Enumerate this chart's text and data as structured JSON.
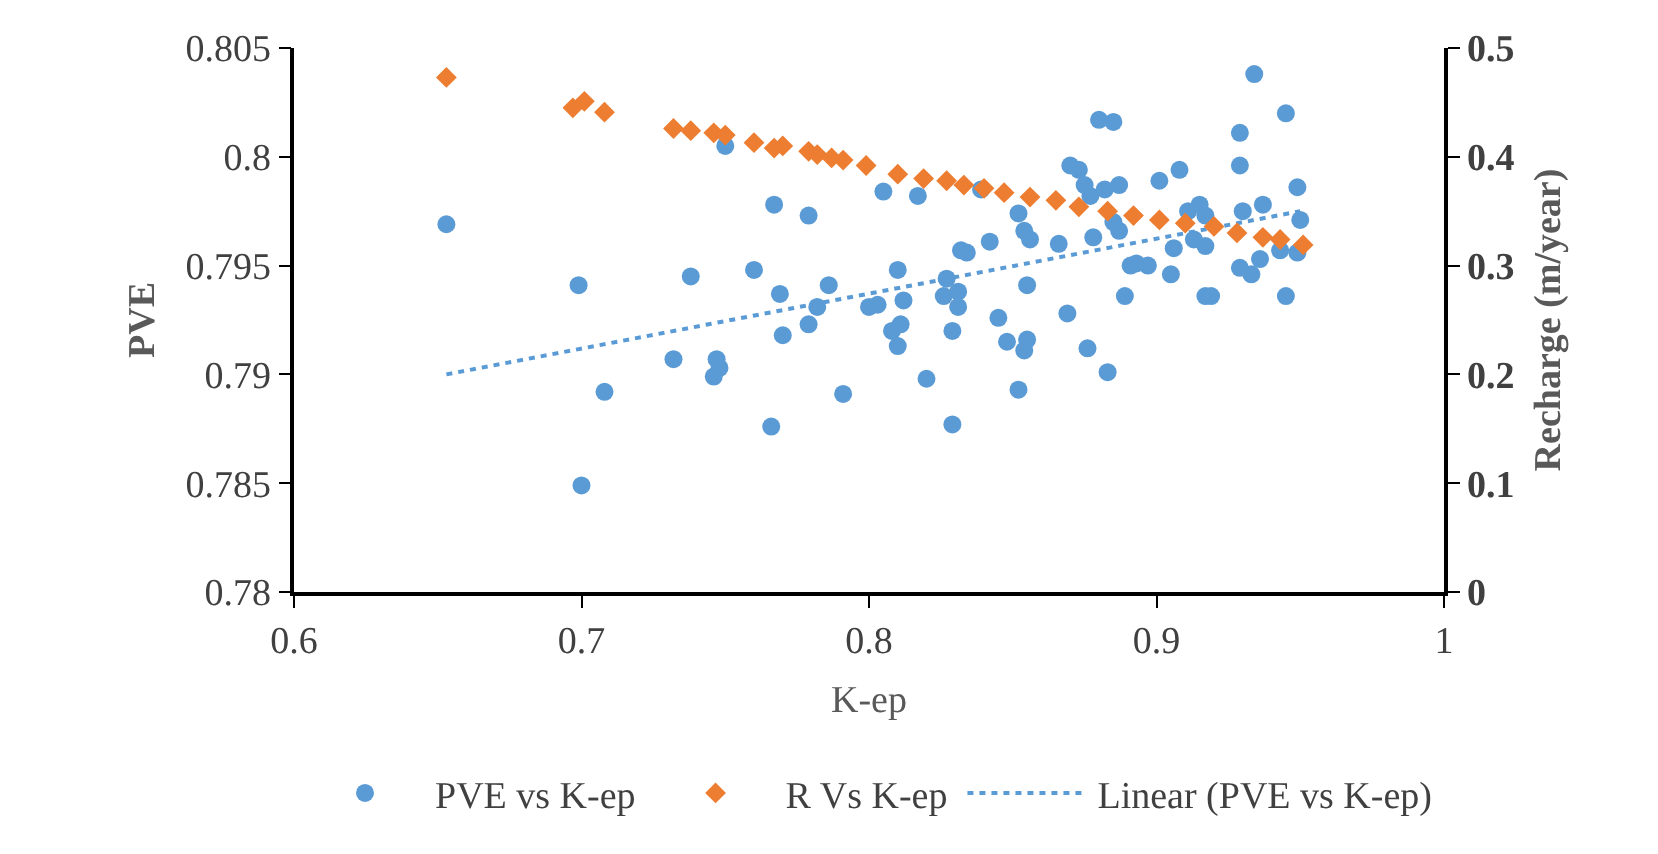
{
  "chart_data": {
    "type": "scatter",
    "xlabel": "K-ep",
    "ylabel": "PVE",
    "y2label": "Recharge (m/year)",
    "xlim": [
      0.6,
      1
    ],
    "xticks": [
      0.6,
      0.7,
      0.8,
      0.9,
      1
    ],
    "ylim": [
      0.78,
      0.805
    ],
    "yticks": [
      0.78,
      0.785,
      0.79,
      0.795,
      0.8,
      0.805
    ],
    "y2lim": [
      0,
      0.5
    ],
    "y2ticks": [
      0,
      0.1,
      0.2,
      0.3,
      0.4,
      0.5
    ],
    "grid": false,
    "legend": "bottom",
    "series": [
      {
        "name": "PVE vs K-ep",
        "color": "#5b9bd5",
        "marker": "circle",
        "x": [
          0.653,
          0.699,
          0.7,
          0.708,
          0.732,
          0.738,
          0.747,
          0.748,
          0.746,
          0.75,
          0.76,
          0.767,
          0.766,
          0.769,
          0.77,
          0.779,
          0.779,
          0.782,
          0.786,
          0.791,
          0.8,
          0.803,
          0.805,
          0.81,
          0.808,
          0.811,
          0.81,
          0.812,
          0.817,
          0.82,
          0.826,
          0.827,
          0.829,
          0.829,
          0.831,
          0.831,
          0.832,
          0.834,
          0.839,
          0.842,
          0.845,
          0.848,
          0.852,
          0.852,
          0.854,
          0.856,
          0.855,
          0.855,
          0.854,
          0.866,
          0.869,
          0.87,
          0.873,
          0.875,
          0.876,
          0.878,
          0.877,
          0.882,
          0.887,
          0.88,
          0.885,
          0.883,
          0.885,
          0.887,
          0.889,
          0.891,
          0.893,
          0.897,
          0.901,
          0.905,
          0.906,
          0.908,
          0.911,
          0.915,
          0.917,
          0.913,
          0.917,
          0.917,
          0.919,
          0.929,
          0.929,
          0.93,
          0.929,
          0.933,
          0.934,
          0.936,
          0.937,
          0.945,
          0.945,
          0.943,
          0.949,
          0.949,
          0.95
        ],
        "values": [
          0.7969,
          0.7941,
          0.7849,
          0.7892,
          0.7907,
          0.7945,
          0.7907,
          0.7903,
          0.7899,
          0.8005,
          0.7948,
          0.7978,
          0.7876,
          0.7937,
          0.7918,
          0.7973,
          0.7923,
          0.7931,
          0.7941,
          0.7891,
          0.7931,
          0.7932,
          0.7984,
          0.7948,
          0.792,
          0.7923,
          0.7913,
          0.7934,
          0.7982,
          0.7898,
          0.7936,
          0.7944,
          0.792,
          0.7877,
          0.7938,
          0.7931,
          0.7957,
          0.7956,
          0.7985,
          0.7961,
          0.7926,
          0.7915,
          0.7893,
          0.7974,
          0.7966,
          0.7962,
          0.7941,
          0.7916,
          0.7911,
          0.796,
          0.7928,
          0.7996,
          0.7994,
          0.7987,
          0.7912,
          0.7963,
          0.7982,
          0.7985,
          0.7987,
          0.8017,
          0.8016,
          0.7901,
          0.797,
          0.7966,
          0.7936,
          0.795,
          0.7951,
          0.795,
          0.7989,
          0.7946,
          0.7958,
          0.7994,
          0.7975,
          0.7978,
          0.7973,
          0.7962,
          0.7959,
          0.7936,
          0.7936,
          0.8011,
          0.7996,
          0.7975,
          0.7949,
          0.7946,
          0.8038,
          0.7953,
          0.7978,
          0.802,
          0.7936,
          0.7957,
          0.7956,
          0.7986,
          0.7971
        ]
      },
      {
        "name": "R Vs K-ep",
        "color": "#ed7d31",
        "marker": "diamond",
        "axis": "y2",
        "x": [
          0.653,
          0.697,
          0.701,
          0.708,
          0.732,
          0.738,
          0.746,
          0.75,
          0.76,
          0.767,
          0.77,
          0.779,
          0.782,
          0.787,
          0.791,
          0.799,
          0.81,
          0.819,
          0.827,
          0.833,
          0.84,
          0.847,
          0.856,
          0.865,
          0.873,
          0.883,
          0.892,
          0.901,
          0.91,
          0.92,
          0.928,
          0.937,
          0.943,
          0.951
        ],
        "values": [
          0.473,
          0.445,
          0.451,
          0.441,
          0.426,
          0.424,
          0.422,
          0.42,
          0.413,
          0.408,
          0.41,
          0.405,
          0.402,
          0.399,
          0.397,
          0.392,
          0.384,
          0.38,
          0.378,
          0.374,
          0.371,
          0.367,
          0.363,
          0.36,
          0.354,
          0.35,
          0.346,
          0.342,
          0.339,
          0.336,
          0.33,
          0.326,
          0.324,
          0.319
        ]
      },
      {
        "name": "Linear (PVE vs K-ep)",
        "type": "line",
        "color": "#5b9bd5",
        "line_style": "dotted",
        "marker": "none",
        "x": [
          0.653,
          0.95
        ],
        "values": [
          0.79,
          0.7975
        ]
      }
    ]
  }
}
